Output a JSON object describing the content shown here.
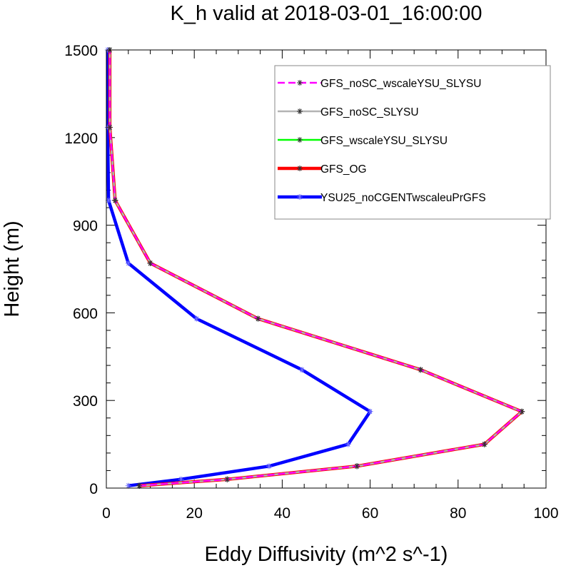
{
  "chart_data": {
    "type": "line",
    "title": "K_h valid at 2018-03-01_16:00:00",
    "xlabel": "Eddy Diffusivity (m^2 s^-1)",
    "ylabel": "Height (m)",
    "xlim": [
      0,
      100
    ],
    "ylim": [
      0,
      1500
    ],
    "xticks": [
      0,
      20,
      40,
      60,
      80,
      100
    ],
    "yticks": [
      0,
      300,
      600,
      900,
      1200,
      1500
    ],
    "legend_position": "top-right",
    "grid": false,
    "series": [
      {
        "name": "YSU25_noCGENTwscaleuPrGFS",
        "color": "#0000ff",
        "style": "solid",
        "x": [
          5.0,
          17.0,
          37.0,
          55.0,
          60.0,
          44.5,
          20.5,
          5.0,
          0.5,
          0.3,
          0.3
        ],
        "y": [
          8,
          30,
          75,
          150,
          262,
          405,
          580,
          770,
          985,
          1235,
          1500
        ]
      },
      {
        "name": "GFS_OG",
        "color": "#ff0000",
        "style": "solid",
        "x": [
          7.5,
          27.5,
          57.0,
          86.0,
          94.5,
          71.5,
          34.5,
          10.0,
          2.0,
          0.8,
          0.8
        ],
        "y": [
          8,
          30,
          75,
          150,
          262,
          405,
          580,
          770,
          985,
          1235,
          1500
        ]
      },
      {
        "name": "GFS_wscaleYSU_SLYSU",
        "color": "#00ff00",
        "style": "solid",
        "x": [
          7.5,
          27.5,
          57.0,
          86.0,
          94.5,
          71.5,
          34.5,
          10.0,
          2.0,
          0.8,
          0.8
        ],
        "y": [
          8,
          30,
          75,
          150,
          262,
          405,
          580,
          770,
          985,
          1235,
          1500
        ]
      },
      {
        "name": "GFS_noSC_SLYSU",
        "color": "#b3b3b3",
        "style": "solid",
        "x": [
          7.5,
          27.5,
          57.0,
          86.0,
          94.5,
          71.5,
          34.5,
          10.0,
          2.0,
          0.8,
          0.8
        ],
        "y": [
          8,
          30,
          75,
          150,
          262,
          405,
          580,
          770,
          985,
          1235,
          1500
        ]
      },
      {
        "name": "GFS_noSC_wscaleYSU_SLYSU",
        "color": "#ff00ff",
        "style": "dashed",
        "x": [
          7.5,
          27.5,
          57.0,
          86.0,
          94.5,
          71.5,
          34.5,
          10.0,
          2.0,
          0.8,
          0.8
        ],
        "y": [
          8,
          30,
          75,
          150,
          262,
          405,
          580,
          770,
          985,
          1235,
          1500
        ]
      }
    ],
    "legend_order": [
      "GFS_noSC_wscaleYSU_SLYSU",
      "GFS_noSC_SLYSU",
      "GFS_wscaleYSU_SLYSU",
      "GFS_OG",
      "YSU25_noCGENTwscaleuPrGFS"
    ]
  }
}
